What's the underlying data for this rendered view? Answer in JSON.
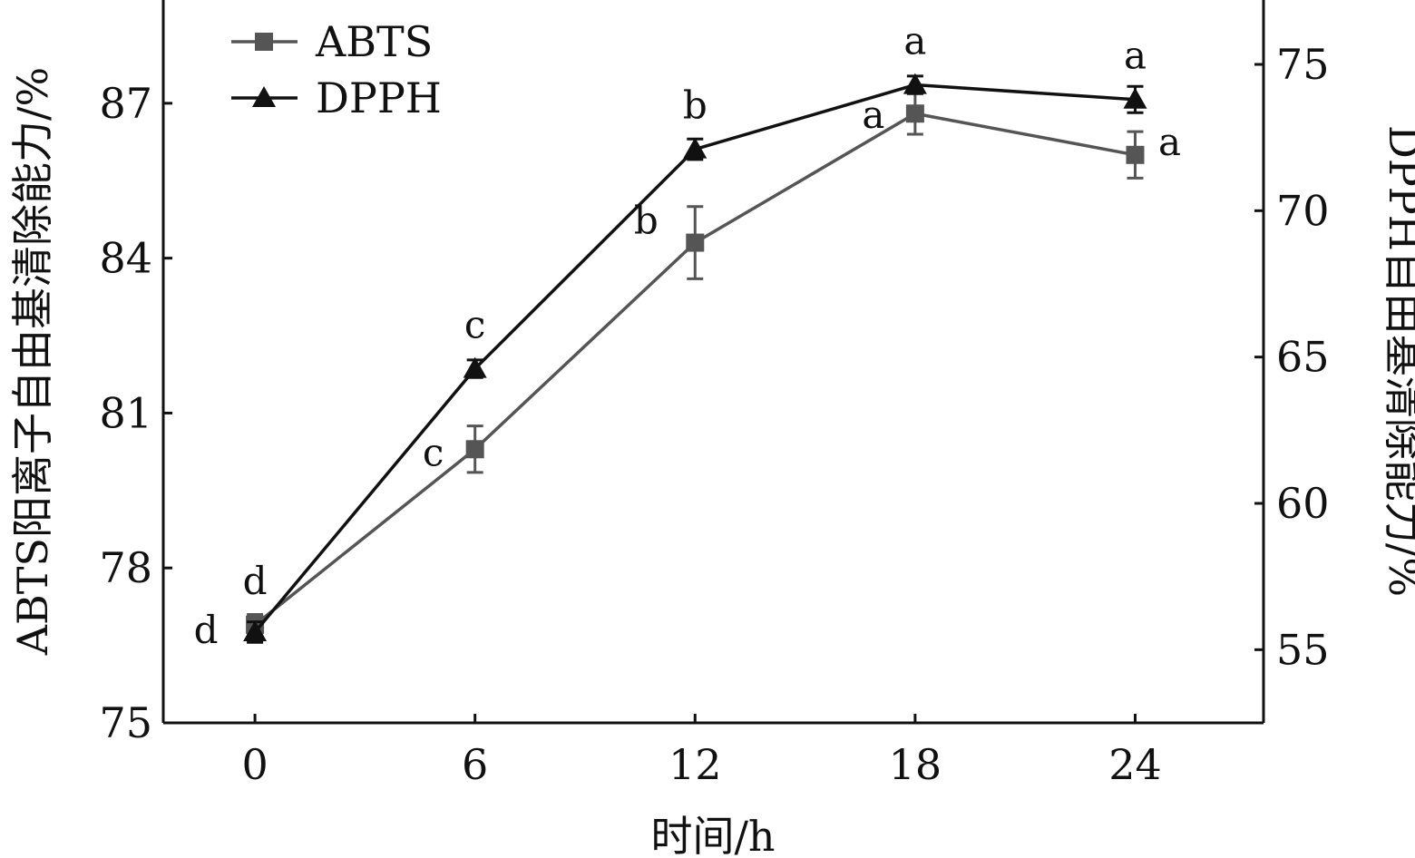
{
  "chart_data": {
    "type": "line",
    "xlabel": "时间/h",
    "ylabel_left": "ABTS阳离子自由基清除能力/%",
    "ylabel_right": "DPPH自由基清除能力/%",
    "x": [
      0,
      6,
      12,
      18,
      24
    ],
    "x_ticks": [
      "0",
      "6",
      "12",
      "18",
      "24"
    ],
    "xlim": [
      -2.5,
      27.5
    ],
    "ylim_left": [
      75,
      89
    ],
    "yticks_left": [
      "75",
      "78",
      "81",
      "84",
      "87"
    ],
    "ylim_right": [
      52.5,
      77.2
    ],
    "yticks_right": [
      "55",
      "60",
      "65",
      "70",
      "75"
    ],
    "grid": false,
    "legend_position": "top-left",
    "series": [
      {
        "name": "ABTS",
        "axis": "left",
        "marker": "square",
        "color": "#555555",
        "values": [
          76.9,
          80.3,
          84.3,
          86.8,
          86.0
        ],
        "errors": [
          0.2,
          0.45,
          0.7,
          0.4,
          0.45
        ],
        "labels": [
          "d",
          "c",
          "b",
          "a",
          "a"
        ]
      },
      {
        "name": "DPPH",
        "axis": "right",
        "marker": "triangle",
        "color": "#111111",
        "values": [
          55.6,
          64.6,
          72.1,
          74.3,
          73.8
        ],
        "errors": [
          0.35,
          0.3,
          0.35,
          0.3,
          0.45
        ],
        "labels": [
          "d",
          "c",
          "b",
          "a",
          "a"
        ]
      }
    ]
  }
}
